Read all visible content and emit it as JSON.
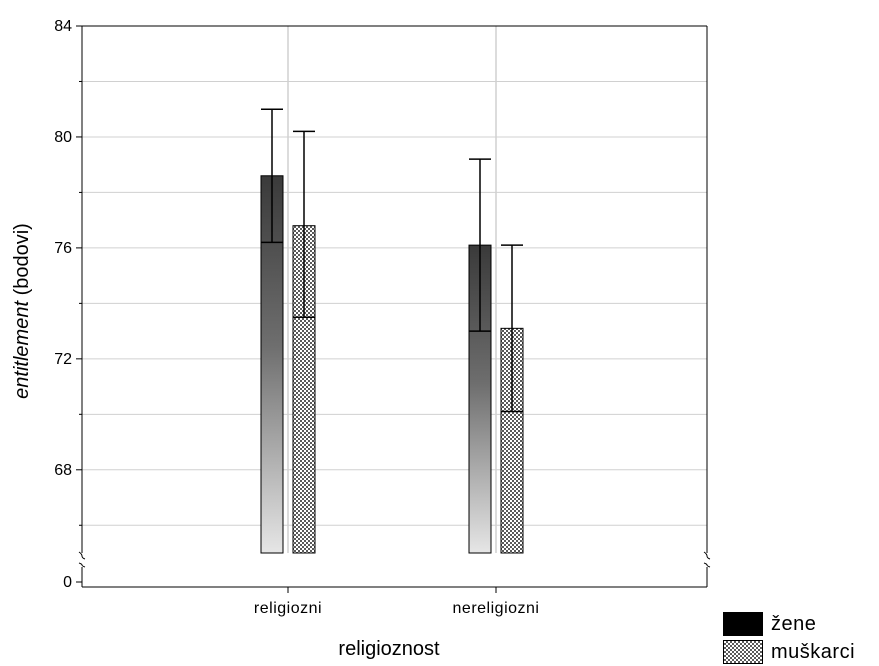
{
  "chart_data": {
    "type": "bar",
    "xlabel": "religioznost",
    "ylabel": {
      "italic": "entitlement",
      "normal": " (bodovi)"
    },
    "categories": [
      "religiozni",
      "nereligiozni"
    ],
    "y_ticks": [
      "0",
      "68",
      "72",
      "76",
      "80",
      "84"
    ],
    "y_break": {
      "below": 65.0,
      "label_value": "0"
    },
    "ylim": [
      65.0,
      84
    ],
    "grid": true,
    "legend_position": "bottom-right",
    "series": [
      {
        "name": "žene",
        "color": "#1a1a1a",
        "fill": "gradient",
        "values": [
          78.6,
          76.1
        ],
        "err_low": [
          76.2,
          73.0
        ],
        "err_high": [
          81.0,
          79.2
        ]
      },
      {
        "name": "muškarci",
        "color": "#9a9a9a",
        "fill": "checker",
        "values": [
          76.8,
          73.1
        ],
        "err_low": [
          73.5,
          70.1
        ],
        "err_high": [
          80.2,
          76.1
        ]
      }
    ]
  }
}
